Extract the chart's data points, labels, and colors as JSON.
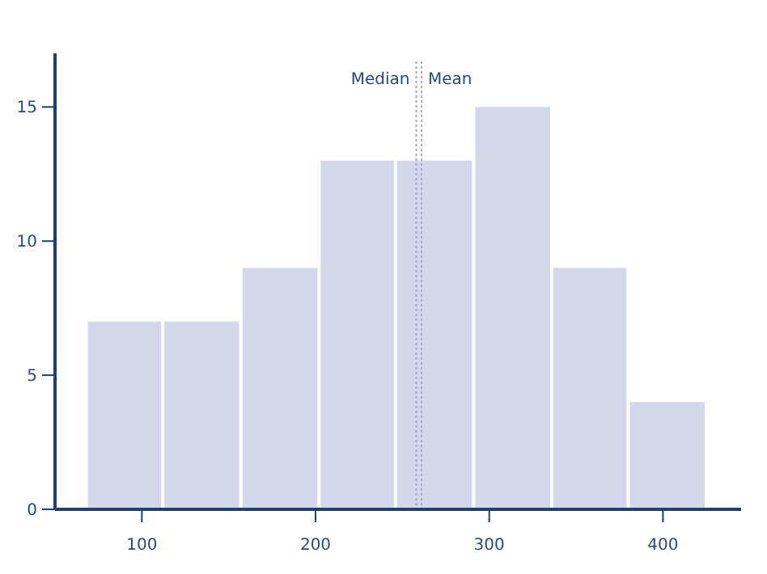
{
  "chart_data": {
    "type": "histogram",
    "bins": [
      68,
      112,
      157,
      202,
      246,
      291,
      336,
      380,
      425
    ],
    "values": [
      7,
      7,
      9,
      13,
      13,
      15,
      9,
      4
    ],
    "color": "#d3d9e8",
    "xlim": [
      50,
      445
    ],
    "ylim": [
      0,
      17
    ],
    "xticks": [
      100,
      200,
      300,
      400
    ],
    "yticks": [
      0,
      5,
      10,
      15
    ],
    "grid": false,
    "ref_lines": [
      {
        "axis": "x",
        "value": 258,
        "label": "Median",
        "color": "#a9a6cc",
        "line_style": "dotted"
      },
      {
        "axis": "x",
        "value": 261,
        "label": "Mean",
        "color": "#a9a6cc",
        "line_style": "dotted"
      }
    ]
  }
}
